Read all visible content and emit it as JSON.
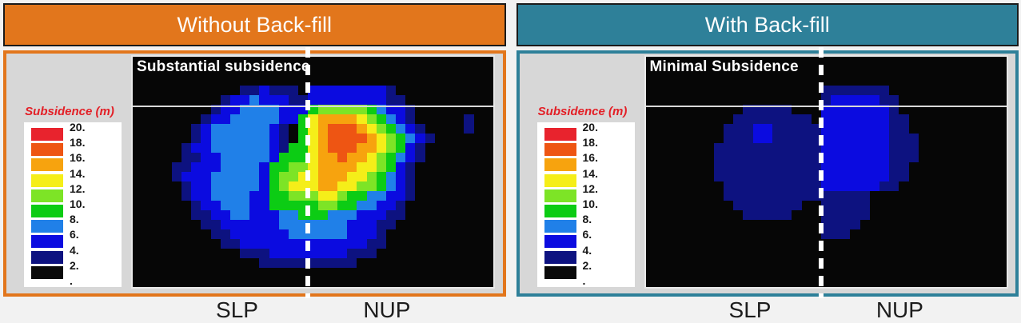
{
  "palette": {
    ".": "#060606",
    "1": "#0d1280",
    "2": "#0b0be0",
    "3": "#2080e8",
    "4": "#0ccc14",
    "5": "#7de426",
    "6": "#f5ee19",
    "7": "#f7a30e",
    "8": "#ee5513",
    "9": "#e8232d"
  },
  "panels": [
    {
      "header": {
        "label": "Without Back-fill"
      },
      "accent": "#e2761c",
      "map_label": "Substantial subsidence",
      "legend": {
        "title": "Subsidence (m)",
        "values": [
          "20.",
          "18.",
          "16.",
          "14.",
          "12.",
          "10.",
          "8.",
          "6.",
          "4.",
          "2.",
          "."
        ],
        "swatch_colors": [
          "#e8232d",
          "#ee5513",
          "#f7a30e",
          "#f5ee19",
          "#7de426",
          "#0ccc14",
          "#2080e8",
          "#0b0be0",
          "#0d1280",
          "#0a0a0a"
        ]
      },
      "axis_labels": [
        "SLP",
        "NUP"
      ]
    },
    {
      "header": {
        "label": "With Back-fill"
      },
      "accent": "#2e8099",
      "map_label": "Minimal Subsidence",
      "legend": {
        "title": "Subsidence (m)",
        "values": [
          "20.",
          "18.",
          "16.",
          "14.",
          "12.",
          "10.",
          "8.",
          "6.",
          "4.",
          "2.",
          "."
        ],
        "swatch_colors": [
          "#e8232d",
          "#ee5513",
          "#f7a30e",
          "#f5ee19",
          "#7de426",
          "#0ccc14",
          "#2080e8",
          "#0b0be0",
          "#0d1280",
          "#0a0a0a"
        ]
      },
      "axis_labels": [
        "SLP",
        "NUP"
      ]
    }
  ],
  "chart_data": [
    {
      "type": "heatmap",
      "title": "Without Back-fill",
      "annotation": "Substantial subsidence",
      "legend_title": "Subsidence (m)",
      "scale_unit": "m",
      "scale_values": [
        20,
        18,
        16,
        14,
        12,
        10,
        8,
        6,
        4,
        2,
        0
      ],
      "scale_colors_high_to_low": [
        "#e8232d",
        "#ee5513",
        "#f7a30e",
        "#f5ee19",
        "#7de426",
        "#0ccc14",
        "#2080e8",
        "#0b0be0",
        "#0d1280",
        "#0a0a0a"
      ],
      "x_labels": [
        "SLP",
        "NUP"
      ],
      "grid_encoding": {
        ".": "0-2 (black)",
        "1": "2-4 (navy)",
        "2": "4-6 (blue)",
        "3": "6-8 (light blue)",
        "4": "8-10 (green)",
        "5": "10-12 (yellow-green)",
        "6": "12-14 (yellow)",
        "7": "14-16 (orange)",
        "8": "16-18 (orange-red)",
        "9": "18-20 (red)"
      },
      "grid": [
        ".....................................",
        ".....................................",
        ".....................................",
        "...........112111.222222221..........",
        ".........1223222112222222211.........",
        "........122333322245555543221........",
        ".......1223333322467777654321.....1..",
        "......1233333321.4678887654321....1..",
        "......1233333321.46788887654321......",
        ".....1223333332144678887765421.......",
        ".....1122333332444677877654321.......",
        "....1122233332445567777665421........",
        "....1222333332455667776654321........",
        ".....122333332456667766554321........",
        ".....122333322445556654433221........",
        "......1223332244444554433221.........",
        "......1122332223344433322211.........",
        ".......11222222333333322211..........",
        "........112222223333332221...........",
        ".........11222222222222211...........",
        "...........11122222222111............",
        ".............1111111111..............",
        ".....................................",
        "....................................."
      ]
    },
    {
      "type": "heatmap",
      "title": "With Back-fill",
      "annotation": "Minimal Subsidence",
      "legend_title": "Subsidence (m)",
      "scale_unit": "m",
      "scale_values": [
        20,
        18,
        16,
        14,
        12,
        10,
        8,
        6,
        4,
        2,
        0
      ],
      "scale_colors_high_to_low": [
        "#e8232d",
        "#ee5513",
        "#f7a30e",
        "#f5ee19",
        "#7de426",
        "#0ccc14",
        "#2080e8",
        "#0b0be0",
        "#0d1280",
        "#0a0a0a"
      ],
      "x_labels": [
        "SLP",
        "NUP"
      ],
      "grid_encoding": {
        ".": "0-2 (black)",
        "1": "2-4 (navy)",
        "2": "4-6 (blue)",
        "3": "6-8 (light blue)",
        "4": "8-10 (green)",
        "5": "10-12 (yellow-green)",
        "6": "12-14 (yellow)",
        "7": "14-16 (orange)",
        "8": "16-18 (orange-red)",
        "9": "18-20 (red)"
      },
      "grid": [
        ".....................................",
        ".....................................",
        ".....................................",
        "..................1111111............",
        "..................12222211...........",
        "..........11111...22222221...........",
        ".........11111111.222222211..........",
        "........1112211111222222211..........",
        "........11122111112222222111.........",
        ".......111111111112222222111.........",
        ".......111111111112222222111.........",
        ".......11111111111222222211..........",
        ".......11111111111222222211..........",
        "........111111111122222211...........",
        "........111111111111111..............",
        ".........1111111..11111..............",
        "..........11111...11111..............",
        "..................1111...............",
        "..................111................",
        ".....................................",
        ".....................................",
        ".....................................",
        ".....................................",
        "....................................."
      ]
    }
  ]
}
